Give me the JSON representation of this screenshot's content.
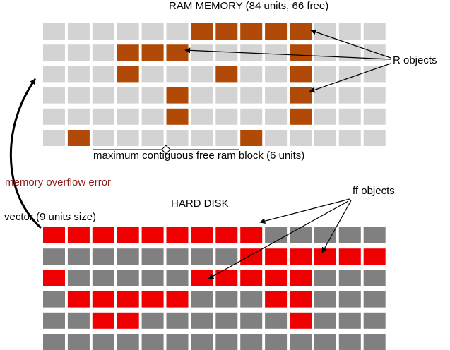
{
  "ram": {
    "title": "RAM MEMORY (84 units, 66 free)",
    "cols": 14,
    "rows": [
      [
        0,
        0,
        0,
        0,
        0,
        0,
        1,
        1,
        1,
        1,
        1,
        0,
        0,
        0
      ],
      [
        0,
        0,
        0,
        1,
        1,
        1,
        0,
        0,
        0,
        0,
        1,
        0,
        0,
        0
      ],
      [
        0,
        0,
        0,
        1,
        0,
        0,
        0,
        1,
        0,
        0,
        1,
        0,
        0,
        0
      ],
      [
        0,
        0,
        0,
        0,
        0,
        1,
        0,
        0,
        0,
        0,
        1,
        0,
        0,
        0
      ],
      [
        0,
        0,
        0,
        0,
        0,
        1,
        0,
        0,
        0,
        0,
        1,
        0,
        0,
        0
      ],
      [
        0,
        1,
        0,
        0,
        0,
        0,
        0,
        0,
        1,
        0,
        0,
        0,
        0,
        0
      ]
    ],
    "free_color": "#d3d3d3",
    "used_color": "#b04a06"
  },
  "hard_disk": {
    "title": "HARD DISK",
    "cols": 14,
    "rows": [
      [
        1,
        1,
        1,
        1,
        1,
        1,
        1,
        1,
        1,
        0,
        0,
        0,
        0,
        0
      ],
      [
        0,
        0,
        0,
        0,
        0,
        0,
        0,
        0,
        1,
        1,
        1,
        1,
        1,
        1
      ],
      [
        1,
        0,
        0,
        0,
        0,
        0,
        1,
        1,
        1,
        1,
        1,
        0,
        0,
        0
      ],
      [
        0,
        1,
        1,
        1,
        1,
        1,
        0,
        0,
        0,
        1,
        1,
        0,
        0,
        0
      ],
      [
        0,
        0,
        1,
        1,
        0,
        0,
        0,
        0,
        0,
        0,
        1,
        0,
        0,
        0
      ],
      [
        0,
        0,
        0,
        0,
        0,
        0,
        0,
        0,
        0,
        0,
        0,
        0,
        0,
        0
      ]
    ],
    "free_color": "#808080",
    "used_color": "#ee0000"
  },
  "annotations": {
    "r_objects": "R objects",
    "ff_objects": "ff objects",
    "vector": "vector (9 units size)",
    "overflow": "memory overflow error",
    "max_block": "maximum contiguous free ram block (6 units)"
  },
  "colors": {
    "overflow_text": "#8b1a1a",
    "arrow": "#000000"
  }
}
